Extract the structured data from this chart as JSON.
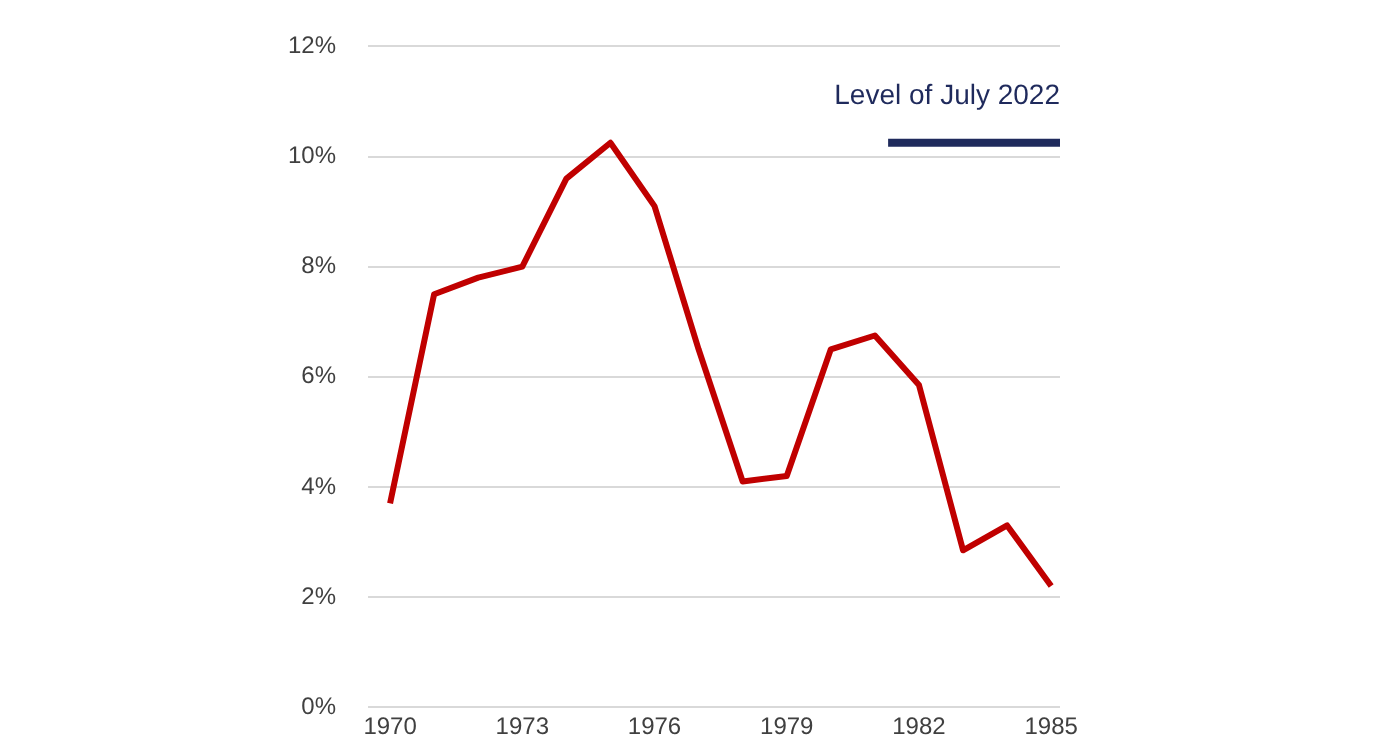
{
  "chart_data": {
    "type": "line",
    "series": [
      {
        "color": "#c00000",
        "x": [
          1970,
          1971,
          1972,
          1973,
          1974,
          1975,
          1976,
          1977,
          1978,
          1979,
          1980,
          1981,
          1982,
          1983,
          1984,
          1985
        ],
        "values": [
          3.7,
          7.5,
          7.8,
          8.0,
          9.6,
          10.25,
          9.1,
          6.5,
          4.1,
          4.2,
          6.5,
          6.75,
          5.85,
          2.85,
          3.3,
          2.2
        ]
      },
      {
        "name": "Level of July 2022",
        "color": "#1f2a5c",
        "x": [
          1981.3,
          1985.2
        ],
        "values": [
          10.25,
          10.25
        ]
      }
    ],
    "xlim": [
      1969.5,
      1985.2
    ],
    "xticks": [
      1970,
      1973,
      1976,
      1979,
      1982,
      1985
    ],
    "ylim": [
      0,
      12
    ],
    "yticks": [
      {
        "value": 0,
        "label": "0%"
      },
      {
        "value": 2,
        "label": "2%"
      },
      {
        "value": 4,
        "label": "4%"
      },
      {
        "value": 6,
        "label": "6%"
      },
      {
        "value": 8,
        "label": "8%"
      },
      {
        "value": 10,
        "label": "10%"
      },
      {
        "value": 12,
        "label": "12%"
      }
    ],
    "grid": "y",
    "legend": false,
    "marker": "none",
    "line_style": "solid"
  }
}
